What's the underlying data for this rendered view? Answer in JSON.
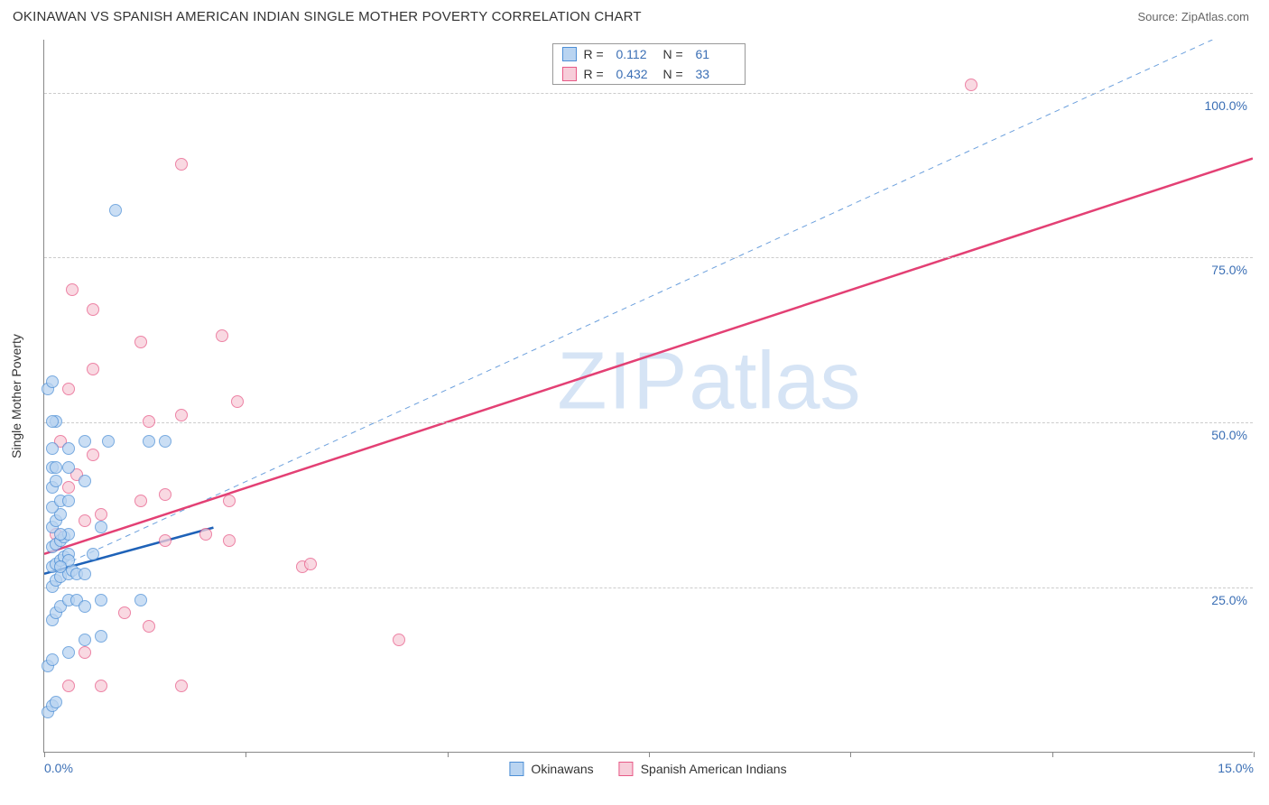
{
  "header": {
    "title": "OKINAWAN VS SPANISH AMERICAN INDIAN SINGLE MOTHER POVERTY CORRELATION CHART",
    "source": "Source: ZipAtlas.com"
  },
  "chart": {
    "type": "scatter",
    "ylabel": "Single Mother Poverty",
    "watermark": "ZIPatlas",
    "watermark_color": "#d6e4f5",
    "background_color": "#ffffff",
    "grid_color": "#cccccc",
    "axis_color": "#888888",
    "xlim": [
      0,
      15
    ],
    "ylim": [
      0,
      108
    ],
    "xticks": [
      0,
      2.5,
      5,
      7.5,
      10,
      12.5,
      15
    ],
    "xtick_labels_shown": {
      "0": "0.0%",
      "15": "15.0%"
    },
    "yticks": [
      25,
      50,
      75,
      100
    ],
    "ytick_labels": [
      "25.0%",
      "50.0%",
      "75.0%",
      "100.0%"
    ],
    "tick_label_color": "#3b6fb5",
    "label_fontsize": 14,
    "title_fontsize": 15,
    "series": [
      {
        "name": "Okinawans",
        "color_fill": "#b9d4f1",
        "color_stroke": "#4d8fd6",
        "R": "0.112",
        "N": "61",
        "trend": {
          "x1": 0,
          "y1": 27,
          "x2": 2.1,
          "y2": 34,
          "color": "#1e62b8",
          "width": 2.5,
          "dash": "none"
        },
        "ref_line": {
          "x1": 0,
          "y1": 27,
          "x2": 14.5,
          "y2": 108,
          "color": "#6ca0dd",
          "width": 1,
          "dash": "6,5"
        },
        "points": [
          [
            0.05,
            6
          ],
          [
            0.1,
            7
          ],
          [
            0.15,
            7.5
          ],
          [
            0.05,
            13
          ],
          [
            0.1,
            14
          ],
          [
            0.3,
            15
          ],
          [
            0.5,
            17
          ],
          [
            0.7,
            17.5
          ],
          [
            0.1,
            20
          ],
          [
            0.15,
            21
          ],
          [
            0.2,
            22
          ],
          [
            0.3,
            23
          ],
          [
            0.4,
            23
          ],
          [
            0.5,
            22
          ],
          [
            0.7,
            23
          ],
          [
            1.2,
            23
          ],
          [
            0.1,
            25
          ],
          [
            0.15,
            26
          ],
          [
            0.2,
            26.5
          ],
          [
            0.3,
            27
          ],
          [
            0.35,
            27.5
          ],
          [
            0.1,
            28
          ],
          [
            0.15,
            28.5
          ],
          [
            0.2,
            29
          ],
          [
            0.25,
            29.5
          ],
          [
            0.3,
            30
          ],
          [
            0.1,
            31
          ],
          [
            0.15,
            31.5
          ],
          [
            0.2,
            32
          ],
          [
            0.25,
            32.5
          ],
          [
            0.3,
            33
          ],
          [
            0.1,
            34
          ],
          [
            0.15,
            35
          ],
          [
            0.2,
            36
          ],
          [
            0.1,
            37
          ],
          [
            0.2,
            38
          ],
          [
            0.3,
            38
          ],
          [
            0.1,
            40
          ],
          [
            0.15,
            41
          ],
          [
            0.5,
            41
          ],
          [
            0.1,
            43
          ],
          [
            0.3,
            43
          ],
          [
            0.1,
            46
          ],
          [
            0.3,
            46
          ],
          [
            0.5,
            47
          ],
          [
            0.8,
            47
          ],
          [
            1.3,
            47
          ],
          [
            1.5,
            47
          ],
          [
            0.15,
            50
          ],
          [
            0.05,
            55
          ],
          [
            0.1,
            56
          ],
          [
            0.1,
            50
          ],
          [
            0.2,
            33
          ],
          [
            0.3,
            29
          ],
          [
            0.4,
            27
          ],
          [
            0.5,
            27
          ],
          [
            0.6,
            30
          ],
          [
            0.7,
            34
          ],
          [
            0.88,
            82
          ],
          [
            0.15,
            43
          ],
          [
            0.2,
            28
          ]
        ]
      },
      {
        "name": "Spanish American Indians",
        "color_fill": "#f7cdd9",
        "color_stroke": "#e75a87",
        "R": "0.432",
        "N": "33",
        "trend": {
          "x1": 0,
          "y1": 30,
          "x2": 15,
          "y2": 90,
          "color": "#e34074",
          "width": 2.5,
          "dash": "none"
        },
        "points": [
          [
            0.3,
            10
          ],
          [
            0.7,
            10
          ],
          [
            1.7,
            10
          ],
          [
            0.5,
            15
          ],
          [
            1.0,
            21
          ],
          [
            1.3,
            19
          ],
          [
            4.4,
            17
          ],
          [
            3.2,
            28
          ],
          [
            3.3,
            28.5
          ],
          [
            1.5,
            32
          ],
          [
            2.0,
            33
          ],
          [
            2.3,
            32
          ],
          [
            0.5,
            35
          ],
          [
            0.7,
            36
          ],
          [
            1.2,
            38
          ],
          [
            1.5,
            39
          ],
          [
            2.3,
            38
          ],
          [
            0.3,
            40
          ],
          [
            0.4,
            42
          ],
          [
            0.6,
            45
          ],
          [
            0.2,
            47
          ],
          [
            1.3,
            50
          ],
          [
            1.7,
            51
          ],
          [
            2.4,
            53
          ],
          [
            0.3,
            55
          ],
          [
            0.6,
            58
          ],
          [
            1.2,
            62
          ],
          [
            2.2,
            63
          ],
          [
            0.6,
            67
          ],
          [
            0.35,
            70
          ],
          [
            1.7,
            89
          ],
          [
            11.5,
            101
          ],
          [
            0.15,
            33
          ]
        ]
      }
    ],
    "legend_top": {
      "stat_label_color": "#333333",
      "value_color": "#3b6fb5"
    }
  }
}
